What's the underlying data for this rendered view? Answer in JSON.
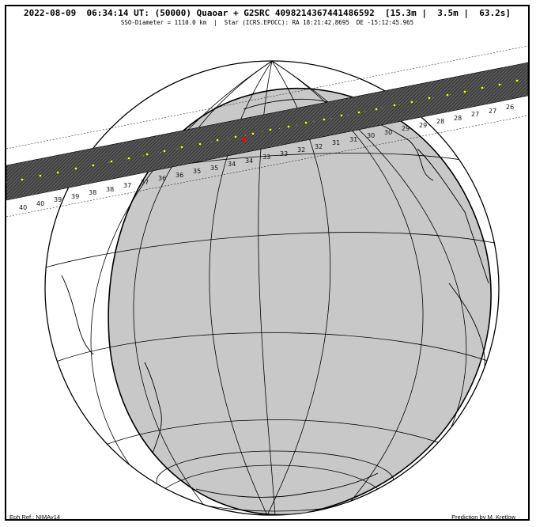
{
  "header": {
    "title": "2022-08-09  06:34:14 UT: (50000) Quaoar + G2SRC 4098214367441486592  [15.3m |  3.5m |  63.2s]",
    "subtitle": "SSO-Diameter = 1110.0 km  |  Star (ICRS.EPOCC): RA 18:21:42.8695  DE -15:12:45.965"
  },
  "footer": {
    "ephemeris_ref": "Eph.Ref.: NIMAv14",
    "credit": "Prediction by M. Kretlow"
  },
  "map": {
    "projection": "orthographic",
    "night_shading_color": "#c8c8c8",
    "shadow_path_color": "#3a3a3a",
    "center_marker_color": "#ffff00",
    "closest_approach_marker_color": "#ff0000",
    "path_time_labels": [
      "40",
      "40",
      "39",
      "39",
      "38",
      "38",
      "37",
      "37",
      "36",
      "36",
      "35",
      "35",
      "34",
      "34",
      "33",
      "33",
      "32",
      "32",
      "31",
      "31",
      "30",
      "30",
      "29",
      "29",
      "28",
      "28",
      "27",
      "27",
      "26"
    ]
  }
}
